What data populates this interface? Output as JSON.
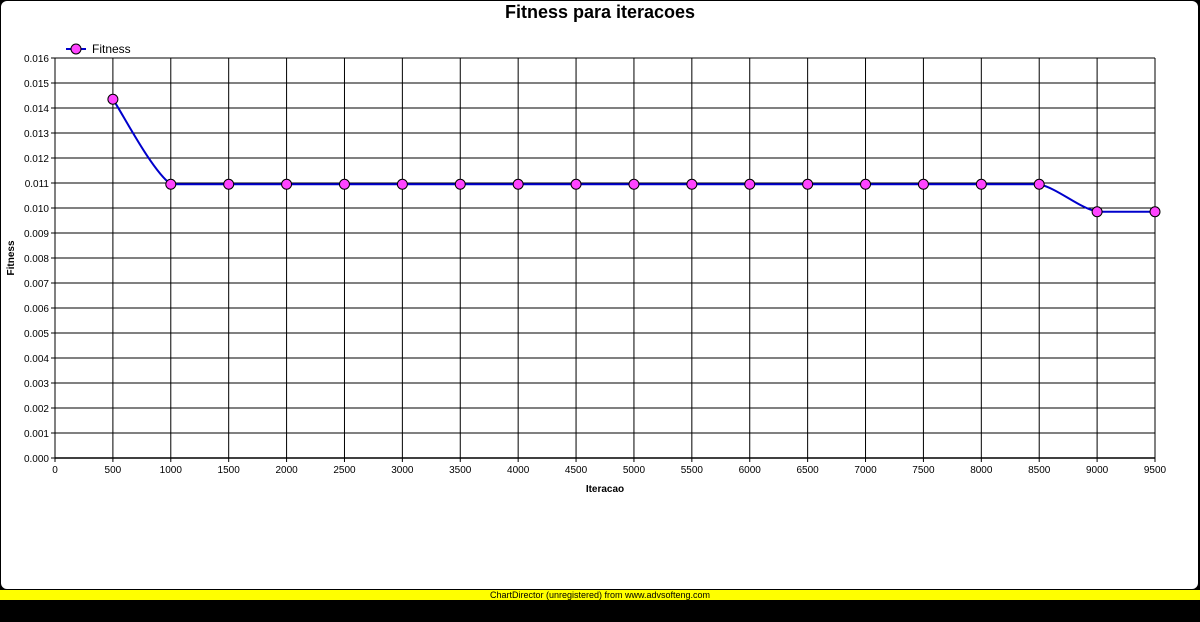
{
  "footer": {
    "text": "ChartDirector (unregistered) from www.advsofteng.com",
    "color": "#ffff00"
  },
  "chart_data": {
    "type": "line",
    "title": "Fitness para iteracoes",
    "xlabel": "Iteracao",
    "ylabel": "Fitness",
    "xlim": [
      0,
      9500
    ],
    "ylim": [
      0,
      0.016
    ],
    "x_ticks": [
      "0",
      "500",
      "1000",
      "1500",
      "2000",
      "2500",
      "3000",
      "3500",
      "4000",
      "4500",
      "5000",
      "5500",
      "6000",
      "6500",
      "7000",
      "7500",
      "8000",
      "8500",
      "9000",
      "9500"
    ],
    "y_ticks": [
      "0.000",
      "0.001",
      "0.002",
      "0.003",
      "0.004",
      "0.005",
      "0.006",
      "0.007",
      "0.008",
      "0.009",
      "0.010",
      "0.011",
      "0.012",
      "0.013",
      "0.014",
      "0.015",
      "0.016"
    ],
    "grid": true,
    "legend_position": "top-left",
    "series": [
      {
        "name": "Fitness",
        "line_color": "#0000cc",
        "marker_color": "#ff44ff",
        "x": [
          500,
          1000,
          1500,
          2000,
          2500,
          3000,
          3500,
          4000,
          4500,
          5000,
          5500,
          6000,
          6500,
          7000,
          7500,
          8000,
          8500,
          9000,
          9500
        ],
        "y": [
          0.01435,
          0.01095,
          0.01095,
          0.01095,
          0.01095,
          0.01095,
          0.01095,
          0.01095,
          0.01095,
          0.01095,
          0.01095,
          0.01095,
          0.01095,
          0.01095,
          0.01095,
          0.01095,
          0.01095,
          0.00985,
          0.00985
        ]
      }
    ]
  }
}
